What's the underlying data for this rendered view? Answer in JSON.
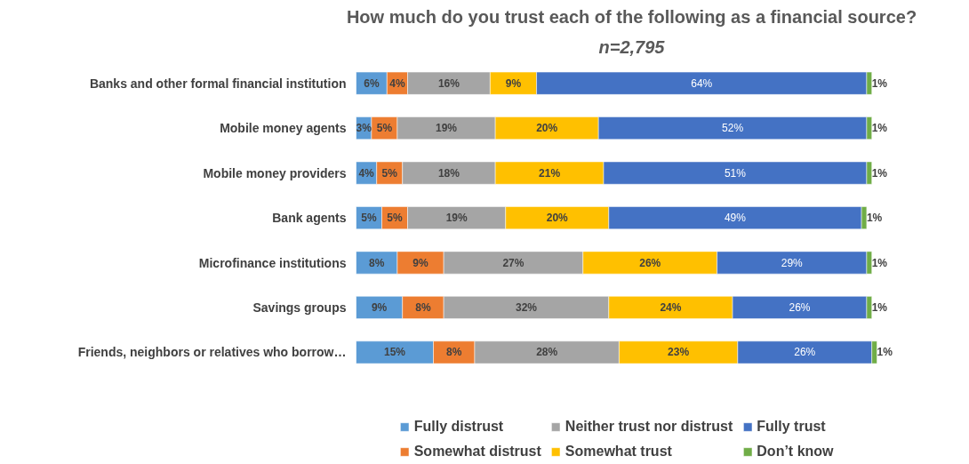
{
  "chart_data": {
    "type": "bar",
    "orientation": "horizontal",
    "stacked": true,
    "title": "How much do you trust each of the following as a financial source?",
    "subtitle": "n=2,795",
    "categories": [
      "Banks and other formal financial institution",
      "Mobile money agents",
      "Mobile money providers",
      "Bank agents",
      "Microfinance institutions",
      "Savings groups",
      "Friends, neighbors or relatives who borrow…"
    ],
    "series": [
      {
        "name": "Fully distrust",
        "color": "#5b9bd5",
        "values": [
          6,
          3,
          4,
          5,
          8,
          9,
          15
        ],
        "value_labels": [
          "6%",
          "3%",
          "4%",
          "5%",
          "8%",
          "9%",
          "15%"
        ]
      },
      {
        "name": "Somewhat distrust",
        "color": "#ed7d31",
        "values": [
          4,
          5,
          5,
          5,
          9,
          8,
          8
        ],
        "value_labels": [
          "4%",
          "5%",
          "5%",
          "5%",
          "9%",
          "8%",
          "8%"
        ]
      },
      {
        "name": "Neither trust nor distrust",
        "color": "#a5a5a5",
        "values": [
          16,
          19,
          18,
          19,
          27,
          32,
          28
        ],
        "value_labels": [
          "16%",
          "19%",
          "18%",
          "19%",
          "27%",
          "32%",
          "28%"
        ]
      },
      {
        "name": "Somewhat trust",
        "color": "#ffc000",
        "values": [
          9,
          20,
          21,
          20,
          26,
          24,
          23
        ],
        "value_labels": [
          "9%",
          "20%",
          "21%",
          "20%",
          "26%",
          "24%",
          "23%"
        ]
      },
      {
        "name": "Fully trust",
        "color": "#4472c4",
        "values": [
          64,
          52,
          51,
          49,
          29,
          26,
          26
        ],
        "value_labels": [
          "64%",
          "52%",
          "51%",
          "49%",
          "29%",
          "26%",
          "26%"
        ]
      },
      {
        "name": "Don’t know",
        "color": "#70ad47",
        "values": [
          1,
          1,
          1,
          1,
          1,
          1,
          1
        ],
        "value_labels": [
          "1%",
          "1%",
          "1%",
          "1%",
          "1%",
          "1%",
          "1%"
        ]
      }
    ],
    "legend": "bottom",
    "grid": false
  }
}
